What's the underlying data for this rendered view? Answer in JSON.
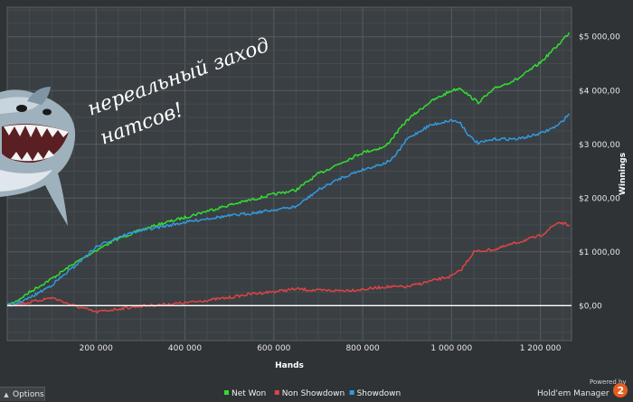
{
  "chart_data": {
    "type": "line",
    "xlabel": "Hands",
    "ylabel": "Winnings",
    "xlim": [
      0,
      1270000
    ],
    "ylim": [
      -650,
      5550
    ],
    "x_ticks": [
      200000,
      400000,
      600000,
      800000,
      1000000,
      1200000
    ],
    "x_tick_labels": [
      "200 000",
      "400 000",
      "600 000",
      "800 000",
      "1 000 000",
      "1 200 000"
    ],
    "y_ticks": [
      0,
      1000,
      2000,
      3000,
      4000,
      5000
    ],
    "y_tick_labels": [
      "$0,00",
      "$1 000,00",
      "$2 000,00",
      "$3 000,00",
      "$4 000,00",
      "$5 000,00"
    ],
    "grid": true,
    "legend_position": "bottom-center",
    "annotation": "нереальный заход натсов!",
    "series": [
      {
        "name": "Net Won",
        "color": "#33dd33",
        "x": [
          0,
          20000,
          50000,
          100000,
          150000,
          200000,
          250000,
          300000,
          350000,
          400000,
          450000,
          500000,
          550000,
          600000,
          650000,
          700000,
          750000,
          800000,
          850000,
          870000,
          900000,
          950000,
          1000000,
          1020000,
          1040000,
          1060000,
          1100000,
          1150000,
          1200000,
          1240000,
          1265000
        ],
        "values": [
          0,
          80,
          250,
          500,
          780,
          1030,
          1250,
          1400,
          1530,
          1640,
          1760,
          1870,
          1970,
          2070,
          2150,
          2450,
          2650,
          2850,
          2950,
          3150,
          3450,
          3780,
          4000,
          4050,
          3900,
          3780,
          4050,
          4220,
          4520,
          4850,
          5080
        ]
      },
      {
        "name": "Non Showdown",
        "color": "#dd4444",
        "x": [
          0,
          50000,
          100000,
          150000,
          200000,
          250000,
          300000,
          350000,
          400000,
          450000,
          500000,
          550000,
          600000,
          650000,
          700000,
          750000,
          800000,
          850000,
          900000,
          950000,
          1000000,
          1020000,
          1040000,
          1050000,
          1100000,
          1150000,
          1200000,
          1240000,
          1265000
        ],
        "values": [
          0,
          60,
          150,
          0,
          -120,
          -60,
          -10,
          20,
          50,
          100,
          150,
          220,
          260,
          310,
          280,
          280,
          300,
          350,
          350,
          450,
          550,
          650,
          880,
          1000,
          1050,
          1180,
          1300,
          1550,
          1500
        ]
      },
      {
        "name": "Showdown",
        "color": "#3399dd",
        "x": [
          0,
          20000,
          50000,
          100000,
          150000,
          200000,
          250000,
          300000,
          350000,
          400000,
          450000,
          500000,
          550000,
          600000,
          650000,
          700000,
          750000,
          800000,
          850000,
          870000,
          900000,
          950000,
          1000000,
          1020000,
          1040000,
          1060000,
          1100000,
          1150000,
          1200000,
          1240000,
          1265000
        ],
        "values": [
          0,
          40,
          140,
          380,
          720,
          1090,
          1280,
          1400,
          1470,
          1550,
          1620,
          1670,
          1720,
          1780,
          1840,
          2150,
          2370,
          2530,
          2650,
          2750,
          3100,
          3350,
          3450,
          3400,
          3150,
          3020,
          3100,
          3100,
          3200,
          3350,
          3570
        ]
      }
    ]
  },
  "ui": {
    "options_label": "Options",
    "powered_by": "Powered by",
    "brand_name": "Hold'em Manager",
    "brand_version": "2"
  }
}
